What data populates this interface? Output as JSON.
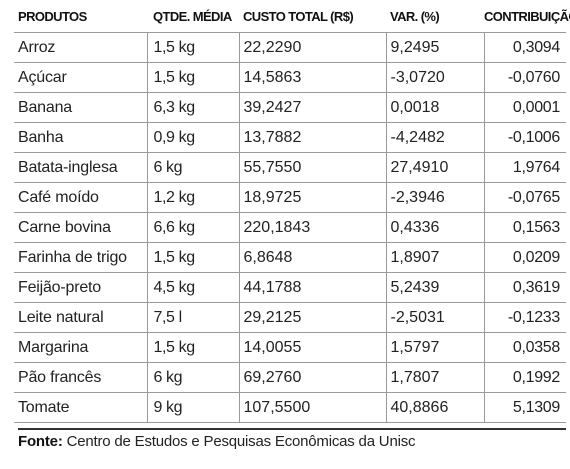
{
  "table": {
    "headers": {
      "produtos": "PRODUTOS",
      "qtde": "QTDE. MÉDIA",
      "custo": "CUSTO TOTAL (R$)",
      "var": "VAR. (%)",
      "contrib": "CONTRIBUIÇÃO"
    },
    "rows": [
      {
        "produto": "Arroz",
        "qtde": "1,5 kg",
        "custo": "22,2290",
        "var": "9,2495",
        "contrib": "0,3094"
      },
      {
        "produto": "Açúcar",
        "qtde": "1,5 kg",
        "custo": "14,5863",
        "var": "-3,0720",
        "contrib": "-0,0760"
      },
      {
        "produto": "Banana",
        "qtde": "6,3 kg",
        "custo": "39,2427",
        "var": "0,0018",
        "contrib": "0,0001"
      },
      {
        "produto": "Banha",
        "qtde": "0,9 kg",
        "custo": "13,7882",
        "var": "-4,2482",
        "contrib": "-0,1006"
      },
      {
        "produto": "Batata-inglesa",
        "qtde": "6 kg",
        "custo": "55,7550",
        "var": "27,4910",
        "contrib": "1,9764"
      },
      {
        "produto": "Café moído",
        "qtde": "1,2 kg",
        "custo": "18,9725",
        "var": "-2,3946",
        "contrib": "-0,0765"
      },
      {
        "produto": "Carne bovina",
        "qtde": "6,6 kg",
        "custo": "220,1843",
        "var": "0,4336",
        "contrib": "0,1563"
      },
      {
        "produto": "Farinha de trigo",
        "qtde": "1,5 kg",
        "custo": "6,8648",
        "var": "1,8907",
        "contrib": "0,0209"
      },
      {
        "produto": "Feijão-preto",
        "qtde": "4,5 kg",
        "custo": "44,1788",
        "var": "5,2439",
        "contrib": "0,3619"
      },
      {
        "produto": "Leite natural",
        "qtde": "7,5 l",
        "custo": "29,2125",
        "var": "-2,5031",
        "contrib": "-0,1233"
      },
      {
        "produto": "Margarina",
        "qtde": "1,5 kg",
        "custo": "14,0055",
        "var": "1,5797",
        "contrib": "0,0358"
      },
      {
        "produto": "Pão francês",
        "qtde": "6 kg",
        "custo": "69,2760",
        "var": "1,7807",
        "contrib": "0,1992"
      },
      {
        "produto": "Tomate",
        "qtde": "9 kg",
        "custo": "107,5500",
        "var": "40,8866",
        "contrib": "5,1309"
      }
    ]
  },
  "footer": {
    "label": "Fonte:",
    "text": "Centro de Estudos e Pesquisas Econômicas da Unisc"
  }
}
